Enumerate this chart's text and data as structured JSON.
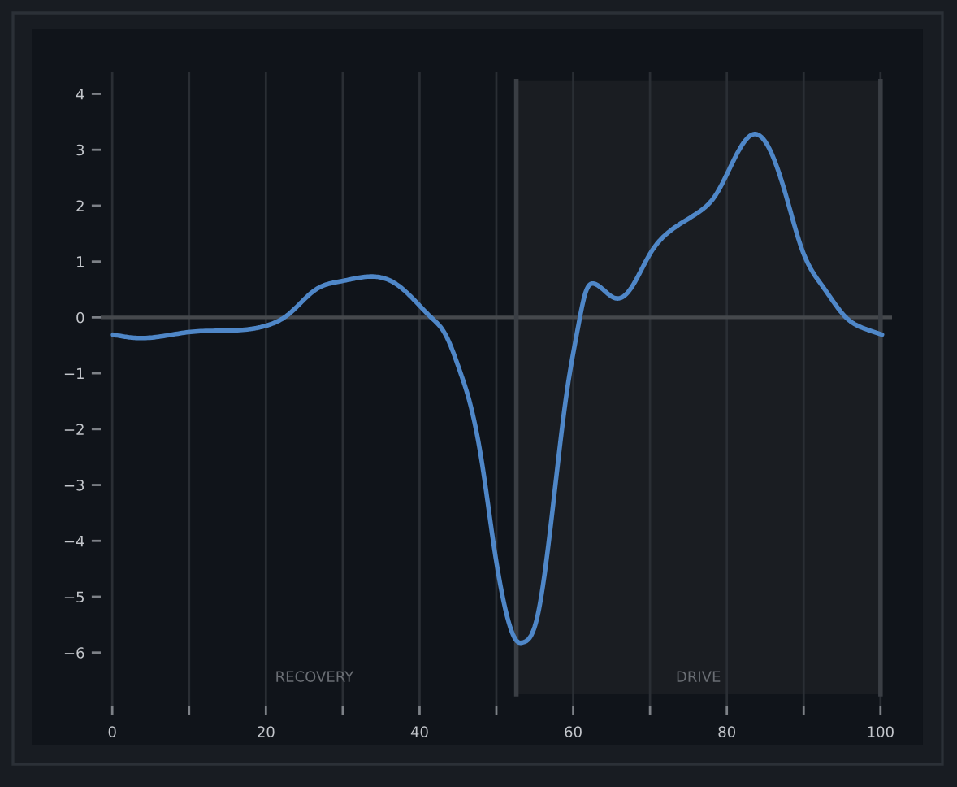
{
  "chart_data": {
    "type": "line",
    "x": [
      0.1,
      3.5,
      10.2,
      17.9,
      20,
      22.9,
      26.4,
      29.9,
      34.1,
      36.3,
      39.1,
      41.5,
      43.3,
      45.4,
      46.1,
      48.2,
      49.6,
      51.1,
      52.8,
      53.4,
      55.3,
      57.4,
      59.2,
      60.6,
      61.6,
      62.8,
      65.6,
      67.3,
      70.1,
      72.2,
      76.4,
      78.5,
      80.7,
      83.5,
      85.6,
      87.7,
      89.8,
      92.6,
      95.5,
      98.3,
      100.2
    ],
    "series": [
      {
        "color": "#4f87c8",
        "values": [
          -0.31,
          -0.37,
          -0.26,
          -0.21,
          -0.15,
          0.05,
          0.49,
          0.65,
          0.73,
          0.65,
          0.34,
          0.0,
          -0.29,
          -1.02,
          -1.31,
          -2.67,
          -4.02,
          -5.18,
          -5.81,
          -5.82,
          -5.38,
          -3.34,
          -1.31,
          -0.2,
          0.44,
          0.6,
          0.34,
          0.48,
          1.16,
          1.5,
          1.89,
          2.18,
          2.76,
          3.28,
          3.0,
          2.18,
          1.21,
          0.53,
          0.0,
          -0.22,
          -0.31
        ]
      }
    ],
    "xlim": [
      -1.5,
      101.5
    ],
    "ylim": [
      -6.95,
      4.4
    ],
    "xticks": [
      0,
      {
        "value": 10,
        "label": null
      },
      20,
      {
        "value": 30,
        "label": null
      },
      40,
      {
        "value": 50,
        "label": null
      },
      60,
      {
        "value": 70,
        "label": null
      },
      80,
      {
        "value": 90,
        "label": null
      },
      100
    ],
    "yticks": [
      {
        "value": -6,
        "label": "−6"
      },
      {
        "value": -5,
        "label": "−5"
      },
      {
        "value": -4,
        "label": "−4"
      },
      {
        "value": -3,
        "label": "−3"
      },
      {
        "value": -2,
        "label": "−2"
      },
      {
        "value": -1,
        "label": "−1"
      },
      0,
      1,
      2,
      3,
      4
    ],
    "grid": "x",
    "line_style": "solid",
    "ref_lines": [
      {
        "axis": "y",
        "value": 0,
        "color": "#45484c"
      },
      {
        "axis": "x",
        "value": 52.6,
        "color": "#3a3e44"
      },
      {
        "axis": "x",
        "value": 100,
        "color": "#3a3e44"
      }
    ],
    "bands": [
      {
        "axis": "x",
        "from": 52.6,
        "to": 100,
        "label": "DRIVE",
        "color": "#1a1d22"
      }
    ],
    "annotations": [
      "RECOVERY"
    ]
  }
}
